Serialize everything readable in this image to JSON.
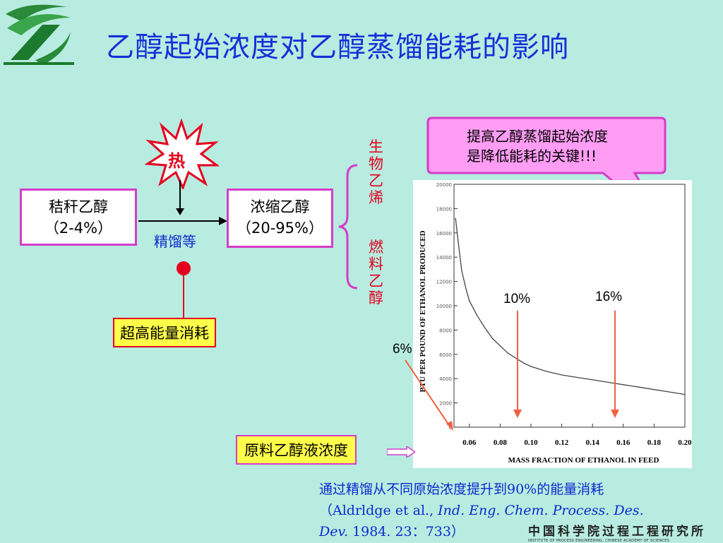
{
  "title": "乙醇起始浓度对乙醇蒸馏能耗的影响",
  "flow": {
    "heat_label": "热",
    "box1_line1": "秸秆乙醇",
    "box1_line2": "（2-4%）",
    "process_label": "精馏等",
    "box2_line1": "浓缩乙醇",
    "box2_line2": "（20-95%）",
    "product1": "生物乙烯",
    "product2": "燃料乙醇",
    "energy_box": "超高能量消耗"
  },
  "callout": {
    "line1": "提高乙醇蒸馏起始浓度",
    "line2": "是降低能耗的关键!!!"
  },
  "feed_label": "原料乙醇液浓度",
  "markers": {
    "m6": "6%",
    "m10": "10%",
    "m16": "16%"
  },
  "chart_data": {
    "type": "line",
    "xlabel": "MASS FRACTION OF ETHANOL IN FEED",
    "ylabel": "BTU PER POUND OF ETHANOL PRODUCED",
    "xlim": [
      0.05,
      0.2
    ],
    "ylim": [
      0,
      20000
    ],
    "xticks": [
      "0.06",
      "0.08",
      "0.10",
      "0.12",
      "0.14",
      "0.16",
      "0.18",
      "0.20"
    ],
    "yticks": [
      "20000",
      "18000",
      "16000",
      "14000",
      "12000",
      "10000",
      "8000",
      "6000",
      "4000",
      "2000",
      "0"
    ],
    "x": [
      0.051,
      0.053,
      0.055,
      0.058,
      0.06,
      0.065,
      0.07,
      0.075,
      0.08,
      0.085,
      0.09,
      0.095,
      0.1,
      0.11,
      0.12,
      0.13,
      0.14,
      0.15,
      0.16,
      0.17,
      0.18,
      0.19,
      0.2
    ],
    "y": [
      17200,
      15000,
      12900,
      11300,
      10400,
      9200,
      8200,
      7300,
      6700,
      6100,
      5700,
      5300,
      5000,
      4600,
      4300,
      4100,
      3900,
      3700,
      3500,
      3300,
      3100,
      2900,
      2700
    ],
    "grid": false
  },
  "citation": {
    "line1": "通过精馏从不同原始浓度提升到90%的能量消耗",
    "line2_pre": "（Aldrldge et al., ",
    "line2_it": "Ind. Eng. Chem. Process. Des.",
    "line3_it": "Dev.",
    "line3_post": " 1984. 23：733）"
  },
  "footer_text": "中国科学院过程工程研究所",
  "footer_sub": "INSTITUTE OF PROCESS ENGINEERING, CHINESE ACADEMY OF SCIENCES",
  "colors": {
    "background": "#b8ece0",
    "title": "#1530d8",
    "box_border": "#d63cc8",
    "red": "#e4001e",
    "yellow": "#ffff4a",
    "callout": "#ff9cf4"
  }
}
